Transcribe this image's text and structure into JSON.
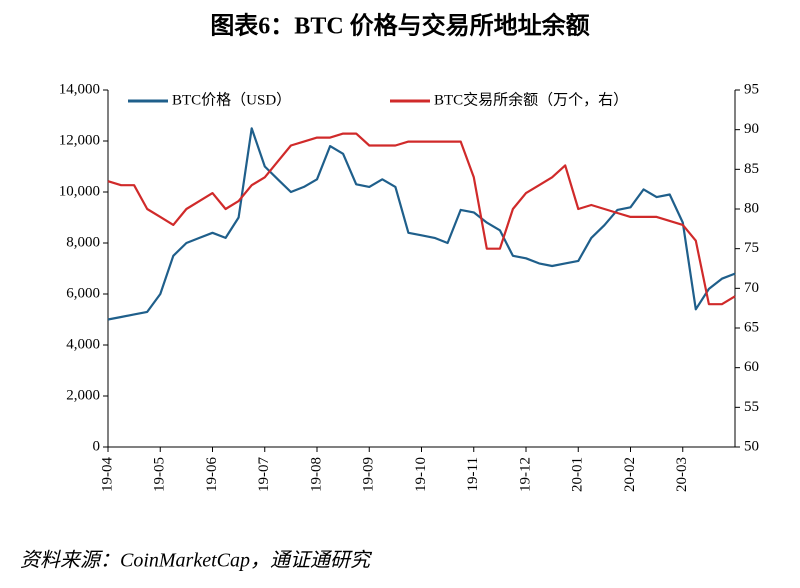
{
  "chart_data": {
    "type": "line",
    "title": "图表6：BTC 价格与交易所地址余额",
    "source": "资料来源：CoinMarketCap，通证通研究",
    "categories": [
      "19-04",
      null,
      null,
      null,
      "19-05",
      null,
      null,
      null,
      "19-06",
      null,
      null,
      null,
      "19-07",
      null,
      null,
      null,
      "19-08",
      null,
      null,
      null,
      "19-09",
      null,
      null,
      null,
      "19-10",
      null,
      null,
      null,
      "19-11",
      null,
      null,
      null,
      "19-12",
      null,
      null,
      null,
      "20-01",
      null,
      null,
      null,
      "20-02",
      null,
      null,
      null,
      "20-03",
      null,
      null,
      null,
      null
    ],
    "series": [
      {
        "name": "BTC价格（USD）",
        "color": "#1f5f8b",
        "axis": "y",
        "values": [
          5000,
          5100,
          5200,
          5300,
          6000,
          7500,
          8000,
          8200,
          8400,
          8200,
          9000,
          12500,
          11000,
          10500,
          10000,
          10200,
          10500,
          11800,
          11500,
          10300,
          10200,
          10500,
          10200,
          8400,
          8300,
          8200,
          8000,
          9300,
          9200,
          8800,
          8500,
          7500,
          7400,
          7200,
          7100,
          7200,
          7300,
          8200,
          8700,
          9300,
          9400,
          10100,
          9800,
          9900,
          8800,
          5400,
          6200,
          6600,
          6800
        ]
      },
      {
        "name": "BTC交易所余额（万个，右）",
        "color": "#d02a2a",
        "axis": "y2",
        "values": [
          83.5,
          83,
          83,
          80,
          79,
          78,
          80,
          81,
          82,
          80,
          81,
          83,
          84,
          86,
          88,
          88.5,
          89,
          89,
          89.5,
          89.5,
          88,
          88,
          88,
          88.5,
          88.5,
          88.5,
          88.5,
          88.5,
          84,
          75,
          75,
          80,
          82,
          83,
          84,
          85.5,
          80,
          80.5,
          80,
          79.5,
          79,
          79,
          79,
          78.5,
          78,
          76,
          68,
          68,
          69
        ]
      }
    ],
    "ylim": [
      0,
      14000
    ],
    "yticks": [
      0,
      {
        "value": 2000,
        "label": "2,000"
      },
      {
        "value": 4000,
        "label": "4,000"
      },
      {
        "value": 6000,
        "label": "6,000"
      },
      {
        "value": 8000,
        "label": "8,000"
      },
      {
        "value": 10000,
        "label": "10,000"
      },
      {
        "value": 12000,
        "label": "12,000"
      },
      {
        "value": 14000,
        "label": "14,000"
      }
    ],
    "y2lim": [
      50,
      95
    ],
    "y2ticks": [
      50,
      55,
      60,
      65,
      70,
      75,
      80,
      85,
      90,
      95
    ],
    "legend": "top"
  }
}
